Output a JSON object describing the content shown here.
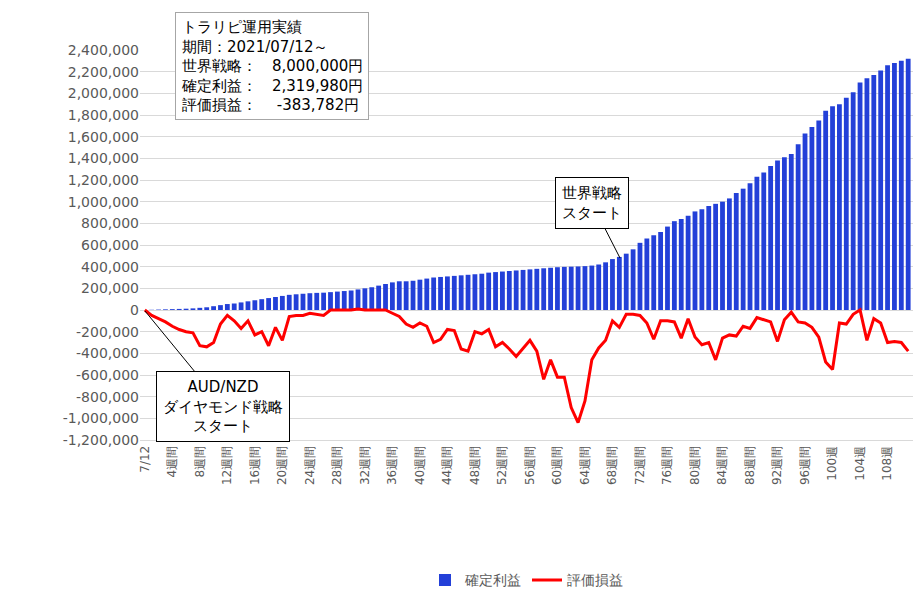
{
  "chart_data": {
    "type": "bar",
    "categories": [
      "7/12",
      null,
      null,
      null,
      "4週間",
      null,
      null,
      null,
      "8週間",
      null,
      null,
      null,
      "12週間",
      null,
      null,
      null,
      "16週間",
      null,
      null,
      null,
      "20週間",
      null,
      null,
      null,
      "24週間",
      null,
      null,
      null,
      "28週間",
      null,
      null,
      null,
      "32週間",
      null,
      null,
      null,
      "36週間",
      null,
      null,
      null,
      "40週間",
      null,
      null,
      null,
      "44週間",
      null,
      null,
      null,
      "48週間",
      null,
      null,
      null,
      "52週間",
      null,
      null,
      null,
      "56週間",
      null,
      null,
      null,
      "60週間",
      null,
      null,
      null,
      "64週間",
      null,
      null,
      null,
      "68週間",
      null,
      null,
      null,
      "72週間",
      null,
      null,
      null,
      "76週間",
      null,
      null,
      null,
      "80週間",
      null,
      null,
      null,
      "84週間",
      null,
      null,
      null,
      "88週間",
      null,
      null,
      null,
      "92週間",
      null,
      null,
      null,
      "96週間",
      null,
      null,
      null,
      "100週",
      null,
      null,
      null,
      "104週",
      null,
      null,
      null,
      "108週",
      null,
      null,
      null
    ],
    "series": [
      {
        "name": "確定利益",
        "type": "bar",
        "color": "#2340d8",
        "values": [
          0,
          2000,
          4000,
          6000,
          8000,
          10000,
          12000,
          15000,
          20000,
          25000,
          35000,
          45000,
          55000,
          60000,
          70000,
          80000,
          90000,
          100000,
          110000,
          120000,
          130000,
          140000,
          145000,
          150000,
          155000,
          158000,
          160000,
          165000,
          170000,
          175000,
          180000,
          190000,
          200000,
          210000,
          225000,
          240000,
          255000,
          265000,
          265000,
          270000,
          280000,
          290000,
          300000,
          305000,
          310000,
          315000,
          320000,
          325000,
          330000,
          335000,
          345000,
          350000,
          355000,
          360000,
          365000,
          370000,
          375000,
          380000,
          385000,
          390000,
          395000,
          398000,
          400000,
          402000,
          405000,
          410000,
          420000,
          440000,
          470000,
          490000,
          520000,
          560000,
          620000,
          660000,
          690000,
          720000,
          770000,
          820000,
          840000,
          870000,
          910000,
          930000,
          960000,
          980000,
          1000000,
          1030000,
          1080000,
          1120000,
          1170000,
          1230000,
          1270000,
          1330000,
          1380000,
          1410000,
          1440000,
          1530000,
          1630000,
          1690000,
          1750000,
          1840000,
          1880000,
          1900000,
          1960000,
          2010000,
          2100000,
          2140000,
          2170000,
          2210000,
          2260000,
          2280000,
          2300000,
          2320000
        ]
      },
      {
        "name": "評価損益",
        "type": "line",
        "color": "#ff0000",
        "values": [
          0,
          -50000,
          -80000,
          -110000,
          -150000,
          -180000,
          -200000,
          -210000,
          -330000,
          -340000,
          -300000,
          -130000,
          -50000,
          -100000,
          -170000,
          -100000,
          -230000,
          -200000,
          -330000,
          -160000,
          -280000,
          -60000,
          -50000,
          -50000,
          -30000,
          -40000,
          -50000,
          0,
          0,
          0,
          0,
          10000,
          0,
          0,
          0,
          0,
          -30000,
          -60000,
          -130000,
          -160000,
          -120000,
          -150000,
          -300000,
          -270000,
          -180000,
          -190000,
          -360000,
          -380000,
          -200000,
          -220000,
          -180000,
          -340000,
          -300000,
          -360000,
          -430000,
          -360000,
          -280000,
          -380000,
          -640000,
          -460000,
          -620000,
          -620000,
          -900000,
          -1040000,
          -840000,
          -460000,
          -350000,
          -280000,
          -100000,
          -160000,
          -40000,
          -40000,
          -50000,
          -120000,
          -270000,
          -100000,
          -100000,
          -110000,
          -260000,
          -80000,
          -250000,
          -320000,
          -300000,
          -460000,
          -260000,
          -230000,
          -240000,
          -150000,
          -170000,
          -70000,
          -90000,
          -110000,
          -290000,
          -90000,
          -20000,
          -110000,
          -120000,
          -160000,
          -250000,
          -480000,
          -550000,
          -120000,
          -130000,
          -40000,
          0,
          -280000,
          -80000,
          -120000,
          -300000,
          -290000,
          -300000,
          -380000
        ]
      }
    ],
    "ylim": [
      -1200000,
      2400000
    ],
    "yticks": [
      {
        "value": -1200000,
        "label": "-1,200,000"
      },
      {
        "value": -1000000,
        "label": "-1,000,000"
      },
      {
        "value": -800000,
        "label": "-800,000"
      },
      {
        "value": -600000,
        "label": "-600,000"
      },
      {
        "value": -400000,
        "label": "-400,000"
      },
      {
        "value": -200000,
        "label": "-200,000"
      },
      0,
      {
        "value": 200000,
        "label": "200,000"
      },
      {
        "value": 400000,
        "label": "400,000"
      },
      {
        "value": 600000,
        "label": "600,000"
      },
      {
        "value": 800000,
        "label": "800,000"
      },
      {
        "value": 1000000,
        "label": "1,000,000"
      },
      {
        "value": 1200000,
        "label": "1,200,000"
      },
      {
        "value": 1400000,
        "label": "1,400,000"
      },
      {
        "value": 1600000,
        "label": "1,600,000"
      },
      {
        "value": 1800000,
        "label": "1,800,000"
      },
      {
        "value": 2000000,
        "label": "2,000,000"
      },
      {
        "value": 2200000,
        "label": "2,200,000"
      },
      {
        "value": 2400000,
        "label": "2,400,000"
      }
    ],
    "grid": true,
    "legend": "bottom",
    "annotations": [
      {
        "lines": [
          "トラリピ運用実績",
          "期間：2021/07/12～",
          "世界戦略：　8,000,000円",
          "確定利益：　2,319,980円",
          "評価損益：　 -383,782円"
        ]
      },
      {
        "lines": [
          "世界戦略",
          "スタート"
        ]
      },
      {
        "lines": [
          "AUD/NZD",
          "ダイヤモンド戦略",
          "スタート"
        ]
      }
    ]
  }
}
